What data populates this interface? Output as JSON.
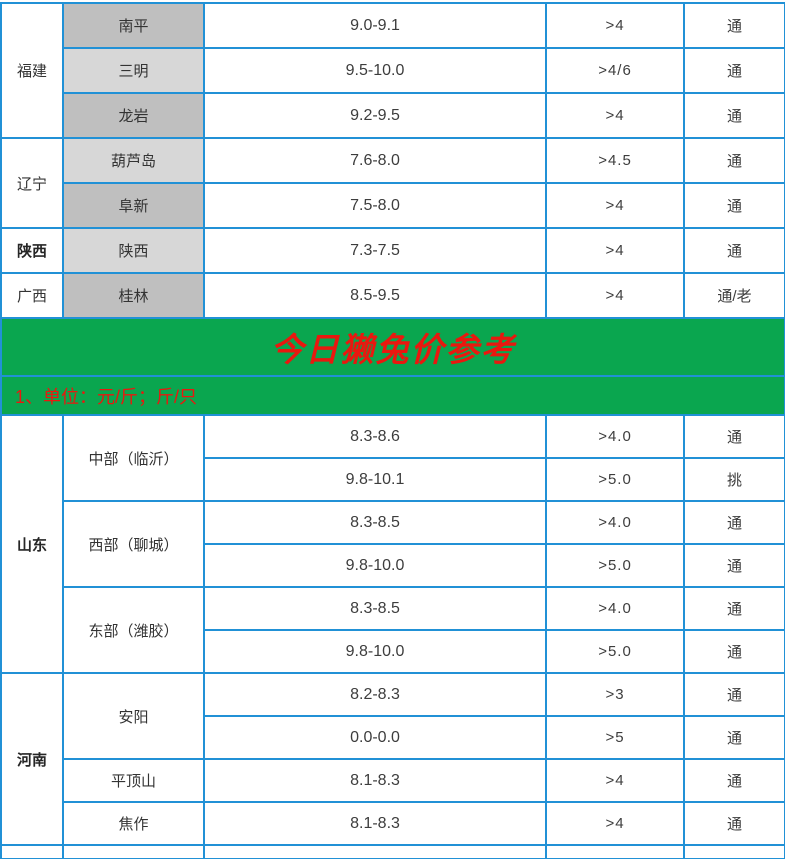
{
  "colors": {
    "border": "#2191d6",
    "green": "#0aa64f",
    "red": "#e9180f",
    "gray_dark": "#bfbfbf",
    "gray_light": "#d7d7d7",
    "text": "#3d3d3d"
  },
  "banner": {
    "title": "今日獭兔价参考",
    "unit_note": "1、单位：元/斤；斤/只"
  },
  "top": {
    "groups": [
      {
        "province": "福建",
        "bold": false,
        "rows": [
          {
            "city": "南平",
            "price": "9.0-9.1",
            "weight": ">4",
            "type": "通"
          },
          {
            "city": "三明",
            "price": "9.5-10.0",
            "weight": ">4/6",
            "type": "通"
          },
          {
            "city": "龙岩",
            "price": "9.2-9.5",
            "weight": ">4",
            "type": "通"
          }
        ]
      },
      {
        "province": "辽宁",
        "bold": false,
        "rows": [
          {
            "city": "葫芦岛",
            "price": "7.6-8.0",
            "weight": ">4.5",
            "type": "通"
          },
          {
            "city": "阜新",
            "price": "7.5-8.0",
            "weight": ">4",
            "type": "通"
          }
        ]
      },
      {
        "province": "陕西",
        "bold": true,
        "rows": [
          {
            "city": "陕西",
            "price": "7.3-7.5",
            "weight": ">4",
            "type": "通"
          }
        ]
      },
      {
        "province": "广西",
        "bold": false,
        "rows": [
          {
            "city": "桂林",
            "price": "8.5-9.5",
            "weight": ">4",
            "type": "通/老"
          }
        ]
      }
    ]
  },
  "bottom": {
    "groups": [
      {
        "province": "山东",
        "bold": true,
        "cities": [
          {
            "city": "中部（临沂）",
            "rows": [
              {
                "price": "8.3-8.6",
                "weight": ">4.0",
                "type": "通"
              },
              {
                "price": "9.8-10.1",
                "weight": ">5.0",
                "type": "挑"
              }
            ]
          },
          {
            "city": "西部（聊城）",
            "rows": [
              {
                "price": "8.3-8.5",
                "weight": ">4.0",
                "type": "通"
              },
              {
                "price": "9.8-10.0",
                "weight": ">5.0",
                "type": "通"
              }
            ]
          },
          {
            "city": "东部（潍胶）",
            "rows": [
              {
                "price": "8.3-8.5",
                "weight": ">4.0",
                "type": "通"
              },
              {
                "price": "9.8-10.0",
                "weight": ">5.0",
                "type": "通"
              }
            ]
          }
        ]
      },
      {
        "province": "河南",
        "bold": true,
        "cities": [
          {
            "city": "安阳",
            "rows": [
              {
                "price": "8.2-8.3",
                "weight": ">3",
                "type": "通"
              },
              {
                "price": "0.0-0.0",
                "weight": ">5",
                "type": "通"
              }
            ]
          },
          {
            "city": "平顶山",
            "rows": [
              {
                "price": "8.1-8.3",
                "weight": ">4",
                "type": "通"
              }
            ]
          },
          {
            "city": "焦作",
            "rows": [
              {
                "price": "8.1-8.3",
                "weight": ">4",
                "type": "通"
              }
            ]
          }
        ]
      }
    ]
  }
}
